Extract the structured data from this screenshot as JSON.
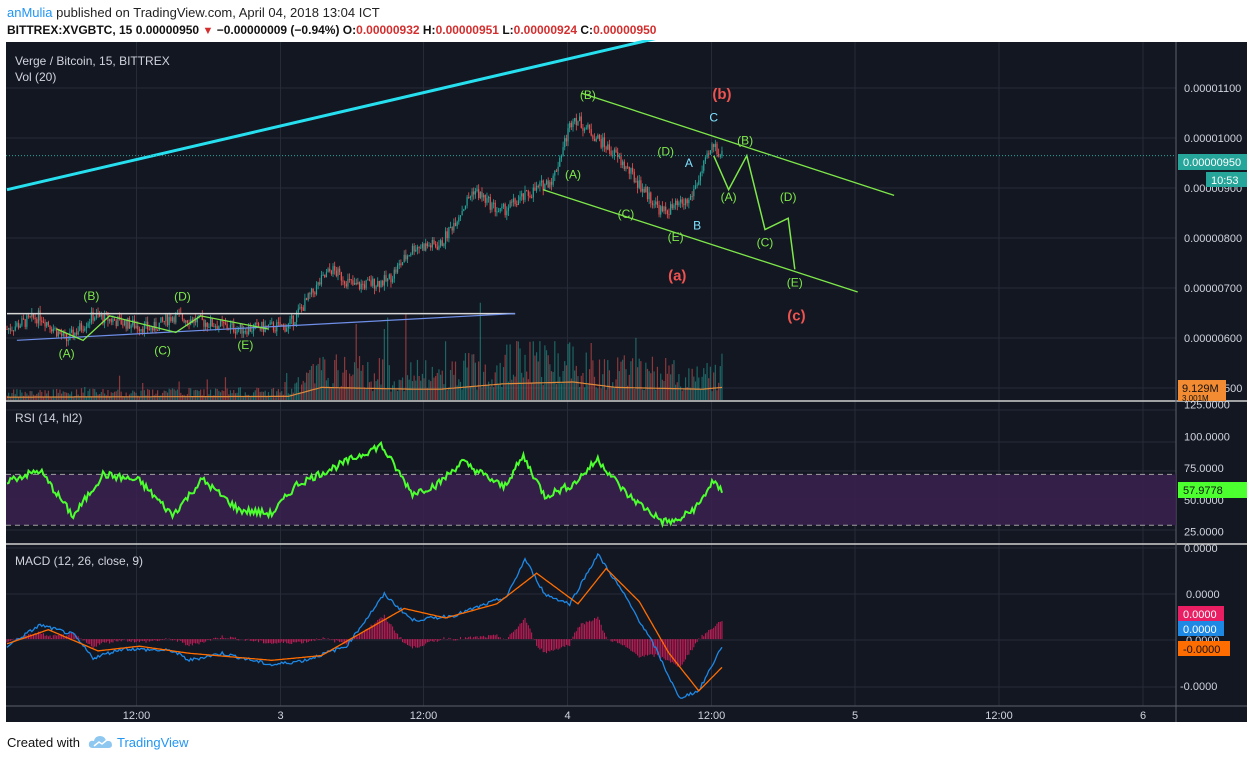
{
  "header": {
    "user": "anMulia",
    "published_text": "published on TradingView.com, April 04, 2018 13:04 ICT",
    "symbol": "BITTREX:XVGBTC, 15",
    "last": "0.00000950",
    "change": "−0.00000009 (−0.94%)",
    "o_label": "O:",
    "o": "0.00000932",
    "h_label": "H:",
    "h": "0.00000951",
    "l_label": "L:",
    "l": "0.00000924",
    "c_label": "C:",
    "c": "0.00000950"
  },
  "footer": {
    "created_with": "Created with",
    "brand": "TradingView"
  },
  "colors": {
    "background": "#131722",
    "up": "#26a69a",
    "down": "#ef5350",
    "trend_cyan": "#26e0f0",
    "wave_green": "#7ee84a",
    "label_red": "#ef5350",
    "rsi_line": "#4cff2e",
    "rsi_band": "#3b2150",
    "macd_line": "#1e88e5",
    "signal_line": "#ff6d00",
    "hist": "#e91e63"
  },
  "chart_data": [
    {
      "type": "candlestick",
      "title": "Verge / Bitcoin, 15, BITTREX",
      "subtitle": "Vol (20)",
      "x_ticks": [
        "12:00",
        "3",
        "12:00",
        "4",
        "12:00",
        "5",
        "12:00",
        "6"
      ],
      "y_ticks": [
        "0.00001100",
        "0.00001000",
        "0.00000900",
        "0.00000800",
        "0.00000700",
        "0.00000600",
        "500"
      ],
      "ylim": [
        5.2e-06,
        1.15e-05
      ],
      "last_price_label": "0.00000950",
      "countdown": "10:53",
      "volume_label": "9.129M",
      "volume_label2": "3.001M",
      "waypoints": [
        {
          "t": 0,
          "p": 6.45e-06
        },
        {
          "t": 20,
          "p": 6.68e-06
        },
        {
          "t": 36,
          "p": 6.25e-06
        },
        {
          "t": 52,
          "p": 6.68e-06
        },
        {
          "t": 88,
          "p": 6.45e-06
        },
        {
          "t": 100,
          "p": 6.68e-06
        },
        {
          "t": 140,
          "p": 6.45e-06
        },
        {
          "t": 170,
          "p": 6.5e-06
        },
        {
          "t": 190,
          "p": 7.3e-06
        },
        {
          "t": 196,
          "p": 7.5e-06
        },
        {
          "t": 210,
          "p": 7.2e-06
        },
        {
          "t": 230,
          "p": 7.3e-06
        },
        {
          "t": 246,
          "p": 7.9e-06
        },
        {
          "t": 262,
          "p": 7.93e-06
        },
        {
          "t": 282,
          "p": 8.9e-06
        },
        {
          "t": 298,
          "p": 8.5e-06
        },
        {
          "t": 330,
          "p": 9.1e-06
        },
        {
          "t": 342,
          "p": 1.02e-05
        },
        {
          "t": 368,
          "p": 9.5e-06
        },
        {
          "t": 396,
          "p": 8.5e-06
        },
        {
          "t": 412,
          "p": 8.7e-06
        },
        {
          "t": 427,
          "p": 9.7e-06
        },
        {
          "t": 432,
          "p": 9.5e-06
        }
      ],
      "volume_waypoints": [
        {
          "t": 0,
          "v": 0.08
        },
        {
          "t": 170,
          "v": 0.1
        },
        {
          "t": 190,
          "v": 0.35
        },
        {
          "t": 246,
          "v": 0.3
        },
        {
          "t": 262,
          "v": 0.3
        },
        {
          "t": 300,
          "v": 0.45
        },
        {
          "t": 342,
          "v": 0.5
        },
        {
          "t": 368,
          "v": 0.35
        },
        {
          "t": 420,
          "v": 0.3
        },
        {
          "t": 432,
          "v": 0.35
        }
      ],
      "annotations": [
        {
          "text": "(A)",
          "color": "green",
          "t": 36,
          "p": 5.95e-06
        },
        {
          "text": "(B)",
          "color": "green",
          "t": 51,
          "p": 6.96e-06
        },
        {
          "text": "(C)",
          "color": "green",
          "t": 94,
          "p": 6e-06
        },
        {
          "text": "(D)",
          "color": "green",
          "t": 106,
          "p": 6.95e-06
        },
        {
          "text": "(E)",
          "color": "green",
          "t": 144,
          "p": 6.1e-06
        },
        {
          "text": "(B)",
          "color": "green",
          "t": 351,
          "p": 1.05e-05
        },
        {
          "text": "(A)",
          "color": "green",
          "t": 342,
          "p": 9.1e-06
        },
        {
          "text": "(C)",
          "color": "green",
          "t": 374,
          "p": 8.4e-06
        },
        {
          "text": "(D)",
          "color": "green",
          "t": 398,
          "p": 9.5e-06
        },
        {
          "text": "(E)",
          "color": "green",
          "t": 404,
          "p": 8e-06
        },
        {
          "text": "A",
          "color": "cyan",
          "t": 412,
          "p": 9.3e-06
        },
        {
          "text": "B",
          "color": "cyan",
          "t": 417,
          "p": 8.2e-06
        },
        {
          "text": "C",
          "color": "cyan",
          "t": 427,
          "p": 1.01e-05
        },
        {
          "text": "(A)",
          "color": "green",
          "t": 436,
          "p": 8.7e-06
        },
        {
          "text": "(B)",
          "color": "green",
          "t": 446,
          "p": 9.7e-06
        },
        {
          "text": "(C)",
          "color": "green",
          "t": 458,
          "p": 7.9e-06
        },
        {
          "text": "(D)",
          "color": "green",
          "t": 472,
          "p": 8.7e-06
        },
        {
          "text": "(E)",
          "color": "green",
          "t": 476,
          "p": 7.2e-06
        },
        {
          "text": "(b)",
          "color": "red",
          "t": 432,
          "p": 1.05e-05
        },
        {
          "text": "(a)",
          "color": "red",
          "t": 405,
          "p": 7.3e-06
        },
        {
          "text": "(c)",
          "color": "red",
          "t": 477,
          "p": 6.6e-06
        }
      ],
      "trendlines": [
        {
          "name": "cyan-uptrend",
          "points": [
            [
              0,
              8.9e-06
            ],
            [
              427,
              1.18e-05
            ]
          ]
        },
        {
          "name": "white-resistance",
          "points": [
            [
              0,
              6.72e-06
            ],
            [
              307,
              6.72e-06
            ]
          ]
        },
        {
          "name": "blue-support",
          "points": [
            [
              6,
              6.25e-06
            ],
            [
              307,
              6.72e-06
            ]
          ]
        },
        {
          "name": "green-channel-upper",
          "points": [
            [
              347,
              1.06e-05
            ],
            [
              536,
              8.8e-06
            ]
          ]
        },
        {
          "name": "green-channel-lower",
          "points": [
            [
              324,
              8.9e-06
            ],
            [
              514,
              7.1e-06
            ]
          ]
        },
        {
          "name": "triangle-waves",
          "points": [
            [
              30,
              6.45e-06
            ],
            [
              46,
              6.25e-06
            ],
            [
              62,
              6.68e-06
            ],
            [
              102,
              6.39e-06
            ],
            [
              117,
              6.68e-06
            ],
            [
              158,
              6.45e-06
            ]
          ]
        },
        {
          "name": "projected-wave",
          "points": [
            [
              427,
              9.5e-06
            ],
            [
              436,
              8.9e-06
            ],
            [
              447,
              9.5e-06
            ],
            [
              458,
              8.2e-06
            ],
            [
              472,
              8.4e-06
            ],
            [
              476,
              7.5e-06
            ]
          ]
        }
      ]
    },
    {
      "type": "line",
      "title": "RSI (14, hl2)",
      "y_ticks": [
        "125.0000",
        "100.0000",
        "75.0000",
        "50.0000",
        "25.0000"
      ],
      "ylim": [
        16,
        127
      ],
      "bands": [
        30,
        70
      ],
      "last_value": "57.9778",
      "waypoints": [
        {
          "t": 0,
          "v": 65
        },
        {
          "t": 20,
          "v": 73
        },
        {
          "t": 40,
          "v": 37
        },
        {
          "t": 58,
          "v": 70
        },
        {
          "t": 80,
          "v": 65
        },
        {
          "t": 100,
          "v": 38
        },
        {
          "t": 118,
          "v": 66
        },
        {
          "t": 140,
          "v": 42
        },
        {
          "t": 160,
          "v": 39
        },
        {
          "t": 175,
          "v": 62
        },
        {
          "t": 205,
          "v": 80
        },
        {
          "t": 226,
          "v": 93
        },
        {
          "t": 245,
          "v": 55
        },
        {
          "t": 260,
          "v": 62
        },
        {
          "t": 275,
          "v": 80
        },
        {
          "t": 300,
          "v": 60
        },
        {
          "t": 312,
          "v": 84
        },
        {
          "t": 325,
          "v": 53
        },
        {
          "t": 342,
          "v": 62
        },
        {
          "t": 357,
          "v": 82
        },
        {
          "t": 374,
          "v": 55
        },
        {
          "t": 396,
          "v": 33
        },
        {
          "t": 405,
          "v": 33
        },
        {
          "t": 418,
          "v": 46
        },
        {
          "t": 426,
          "v": 64
        },
        {
          "t": 432,
          "v": 57
        }
      ]
    },
    {
      "type": "line",
      "title": "MACD (12, 26, close, 9)",
      "y_ticks": [
        "0.0000",
        "0.0000",
        "0.0000",
        "-0.0000"
      ],
      "y_tick_top": "0.0000",
      "ylim": [
        -2.8,
        4.0
      ],
      "last_values": {
        "macd": "0.0000",
        "signal": "0.0000",
        "hist": "-0.0000"
      },
      "macd_waypoints": [
        {
          "t": 0,
          "v": -0.3
        },
        {
          "t": 20,
          "v": 0.6
        },
        {
          "t": 40,
          "v": 0.2
        },
        {
          "t": 52,
          "v": -0.8
        },
        {
          "t": 70,
          "v": -0.4
        },
        {
          "t": 100,
          "v": -0.5
        },
        {
          "t": 110,
          "v": -0.9
        },
        {
          "t": 130,
          "v": -0.6
        },
        {
          "t": 160,
          "v": -1.1
        },
        {
          "t": 180,
          "v": -0.9
        },
        {
          "t": 205,
          "v": -0.3
        },
        {
          "t": 228,
          "v": 1.9
        },
        {
          "t": 245,
          "v": 0.8
        },
        {
          "t": 270,
          "v": 1.0
        },
        {
          "t": 302,
          "v": 1.8
        },
        {
          "t": 313,
          "v": 3.4
        },
        {
          "t": 325,
          "v": 1.9
        },
        {
          "t": 340,
          "v": 1.5
        },
        {
          "t": 357,
          "v": 3.6
        },
        {
          "t": 372,
          "v": 2.0
        },
        {
          "t": 392,
          "v": -0.4
        },
        {
          "t": 406,
          "v": -2.5
        },
        {
          "t": 418,
          "v": -2.2
        },
        {
          "t": 432,
          "v": -0.3
        }
      ],
      "signal_waypoints": [
        {
          "t": 0,
          "v": -0.2
        },
        {
          "t": 25,
          "v": 0.4
        },
        {
          "t": 55,
          "v": -0.5
        },
        {
          "t": 80,
          "v": -0.3
        },
        {
          "t": 110,
          "v": -0.6
        },
        {
          "t": 160,
          "v": -0.9
        },
        {
          "t": 190,
          "v": -0.7
        },
        {
          "t": 215,
          "v": 0.3
        },
        {
          "t": 240,
          "v": 1.3
        },
        {
          "t": 265,
          "v": 0.9
        },
        {
          "t": 296,
          "v": 1.5
        },
        {
          "t": 320,
          "v": 2.8
        },
        {
          "t": 345,
          "v": 1.5
        },
        {
          "t": 362,
          "v": 3.0
        },
        {
          "t": 382,
          "v": 1.6
        },
        {
          "t": 400,
          "v": -0.6
        },
        {
          "t": 418,
          "v": -2.2
        },
        {
          "t": 432,
          "v": -1.2
        }
      ]
    }
  ]
}
